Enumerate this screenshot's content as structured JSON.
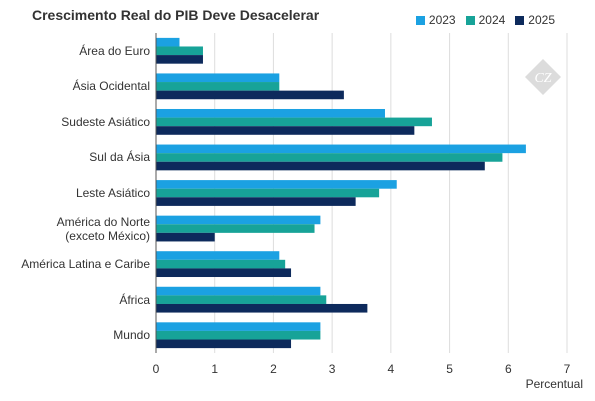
{
  "chart_data": {
    "type": "bar",
    "orientation": "horizontal",
    "title": "Crescimento Real do PIB Deve Desacelerar",
    "xlabel": "Percentual",
    "ylabel": "",
    "xlim": [
      0,
      7
    ],
    "xticks": [
      0,
      1,
      2,
      3,
      4,
      5,
      6,
      7
    ],
    "grid": "vertical",
    "legend_position": "top-right",
    "categories": [
      "Área do Euro",
      "Ásia Ocidental",
      "Sudeste Asiático",
      "Sul da Ásia",
      "Leste Asiático",
      "América do Norte\n(exceto México)",
      "América Latina e Caribe",
      "África",
      "Mundo"
    ],
    "series": [
      {
        "name": "2023",
        "color": "#1ba1e2",
        "values": [
          0.4,
          2.1,
          3.9,
          6.3,
          4.1,
          2.8,
          2.1,
          2.8,
          2.8
        ]
      },
      {
        "name": "2024",
        "color": "#17a398",
        "values": [
          0.8,
          2.1,
          4.7,
          5.9,
          3.8,
          2.7,
          2.2,
          2.9,
          2.8
        ]
      },
      {
        "name": "2025",
        "color": "#0d2a5c",
        "values": [
          0.8,
          3.2,
          4.4,
          5.6,
          3.4,
          1.0,
          2.3,
          3.6,
          2.3
        ]
      }
    ]
  }
}
